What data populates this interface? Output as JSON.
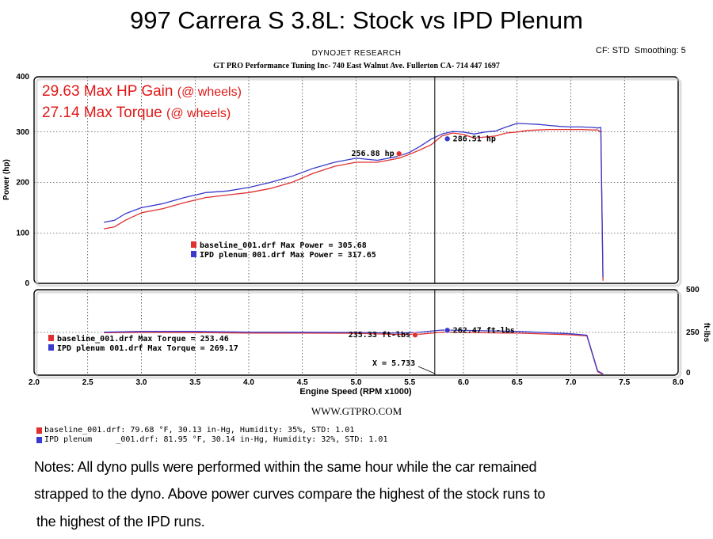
{
  "header": {
    "title": "997 Carrera S 3.8L: Stock vs IPD Plenum",
    "brand": "DYNOJET RESEARCH",
    "company": "GT PRO Performance Tuning Inc- 740 East Walnut Ave. Fullerton CA- 714 447 1697",
    "cf_setting": "CF: STD  Smoothing: 5"
  },
  "colors": {
    "baseline": "#e03030",
    "ipd": "#3a3acc",
    "annotation": "#e01818",
    "grid": "#000000",
    "frame": "#000000"
  },
  "chart_data": [
    {
      "type": "line",
      "ylabel": "Power (hp)",
      "ylim": [
        0,
        400
      ],
      "xlim": [
        2.0,
        8.0
      ],
      "yticks": [
        "0",
        "100",
        "200",
        "300",
        "400"
      ],
      "grid": true,
      "annotations": [
        {
          "text": "29.63 Max HP Gain",
          "suffix": "(@ wheels)"
        },
        {
          "text": "27.14 Max Torque",
          "suffix": "(@ wheels)"
        }
      ],
      "point_labels": [
        {
          "text": "256.88 hp",
          "series": "baseline_001.drf",
          "x": 5.4,
          "y": 256.88
        },
        {
          "text": "286.51 hp",
          "series": "IPD plenum 001.drf",
          "x": 5.85,
          "y": 286.51
        }
      ],
      "cursor_x": 5.733,
      "legend": [
        {
          "text": "baseline_001.drf Max Power = 305.68"
        },
        {
          "text": "IPD plenum 001.drf Max Power = 317.65"
        }
      ],
      "series": [
        {
          "name": "baseline_001.drf",
          "x": [
            2.65,
            2.75,
            2.85,
            3.0,
            3.2,
            3.4,
            3.6,
            3.8,
            4.0,
            4.2,
            4.4,
            4.6,
            4.8,
            5.0,
            5.2,
            5.4,
            5.5,
            5.6,
            5.7,
            5.8,
            5.9,
            6.0,
            6.1,
            6.2,
            6.3,
            6.4,
            6.5,
            6.6,
            6.7,
            6.8,
            6.9,
            7.0,
            7.1,
            7.2,
            7.25,
            7.28,
            7.3
          ],
          "y": [
            108,
            112,
            125,
            140,
            148,
            160,
            170,
            175,
            180,
            188,
            200,
            218,
            232,
            240,
            240,
            248,
            256,
            265,
            275,
            292,
            298,
            295,
            288,
            290,
            292,
            298,
            300,
            303,
            304,
            305,
            305,
            305,
            305,
            304,
            304,
            300,
            5
          ]
        },
        {
          "name": "IPD plenum 001.drf",
          "x": [
            2.65,
            2.75,
            2.85,
            3.0,
            3.2,
            3.4,
            3.6,
            3.8,
            4.0,
            4.2,
            4.4,
            4.6,
            4.8,
            5.0,
            5.2,
            5.4,
            5.5,
            5.6,
            5.7,
            5.8,
            5.9,
            6.0,
            6.1,
            6.2,
            6.3,
            6.4,
            6.5,
            6.6,
            6.7,
            6.8,
            6.9,
            7.0,
            7.1,
            7.2,
            7.25,
            7.28,
            7.3
          ],
          "y": [
            121,
            125,
            138,
            150,
            158,
            170,
            180,
            183,
            190,
            200,
            212,
            228,
            240,
            248,
            244,
            252,
            260,
            272,
            286,
            296,
            301,
            300,
            296,
            300,
            302,
            310,
            317,
            316,
            315,
            313,
            311,
            310,
            310,
            309,
            308,
            309,
            12
          ]
        }
      ]
    },
    {
      "type": "line",
      "xlabel": "Engine Speed (RPM x1000)",
      "ylabel": "ft-lbs",
      "ylim": [
        0,
        500
      ],
      "xlim": [
        2.0,
        8.0
      ],
      "xticks": [
        "2.0",
        "2.5",
        "3.0",
        "3.5",
        "4.0",
        "4.5",
        "5.0",
        "5.5",
        "6.0",
        "6.5",
        "7.0",
        "7.5",
        "8.0"
      ],
      "yticks": [
        "0",
        "250",
        "500"
      ],
      "grid": true,
      "point_labels": [
        {
          "text": "235.33 ft-lbs",
          "series": "baseline_001.drf",
          "x": 5.55,
          "y": 235.33
        },
        {
          "text": "262.47 ft-lbs",
          "series": "IPD plenum 001.drf",
          "x": 5.85,
          "y": 262.47
        }
      ],
      "cursor_label": "X = 5.733",
      "cursor_x": 5.733,
      "legend": [
        {
          "text": "baseline_001.drf Max Torque = 253.46"
        },
        {
          "text": "IPD plenum 001.drf Max Torque = 269.17"
        }
      ],
      "series": [
        {
          "name": "baseline_001.drf",
          "x": [
            2.65,
            3.0,
            3.5,
            4.0,
            4.5,
            5.0,
            5.4,
            5.6,
            5.8,
            6.0,
            6.5,
            7.0,
            7.15,
            7.25,
            7.3
          ],
          "y": [
            248,
            250,
            249,
            246,
            246,
            245,
            238,
            240,
            252,
            250,
            246,
            236,
            230,
            20,
            5
          ]
        },
        {
          "name": "IPD plenum 001.drf",
          "x": [
            2.65,
            3.0,
            3.5,
            4.0,
            4.5,
            5.0,
            5.4,
            5.6,
            5.8,
            6.0,
            6.5,
            7.0,
            7.15,
            7.25,
            7.3
          ],
          "y": [
            252,
            256,
            256,
            252,
            251,
            250,
            246,
            252,
            264,
            262,
            256,
            242,
            234,
            25,
            8
          ]
        }
      ]
    }
  ],
  "conditions": [
    {
      "text": "baseline_001.drf: 79.68 °F, 30.13 in-Hg, Humidity: 35%, STD: 1.01"
    },
    {
      "text": "IPD plenum     _001.drf: 81.95 °F, 30.14 in-Hg, Humidity: 32%, STD: 1.01"
    }
  ],
  "website": "WWW.GTPRO.COM",
  "notes": [
    "Notes: All dyno pulls were performed within the same hour while the car remained",
    "strapped to the dyno. Above power curves compare the highest of the stock runs to",
    "the highest of the IPD runs."
  ]
}
